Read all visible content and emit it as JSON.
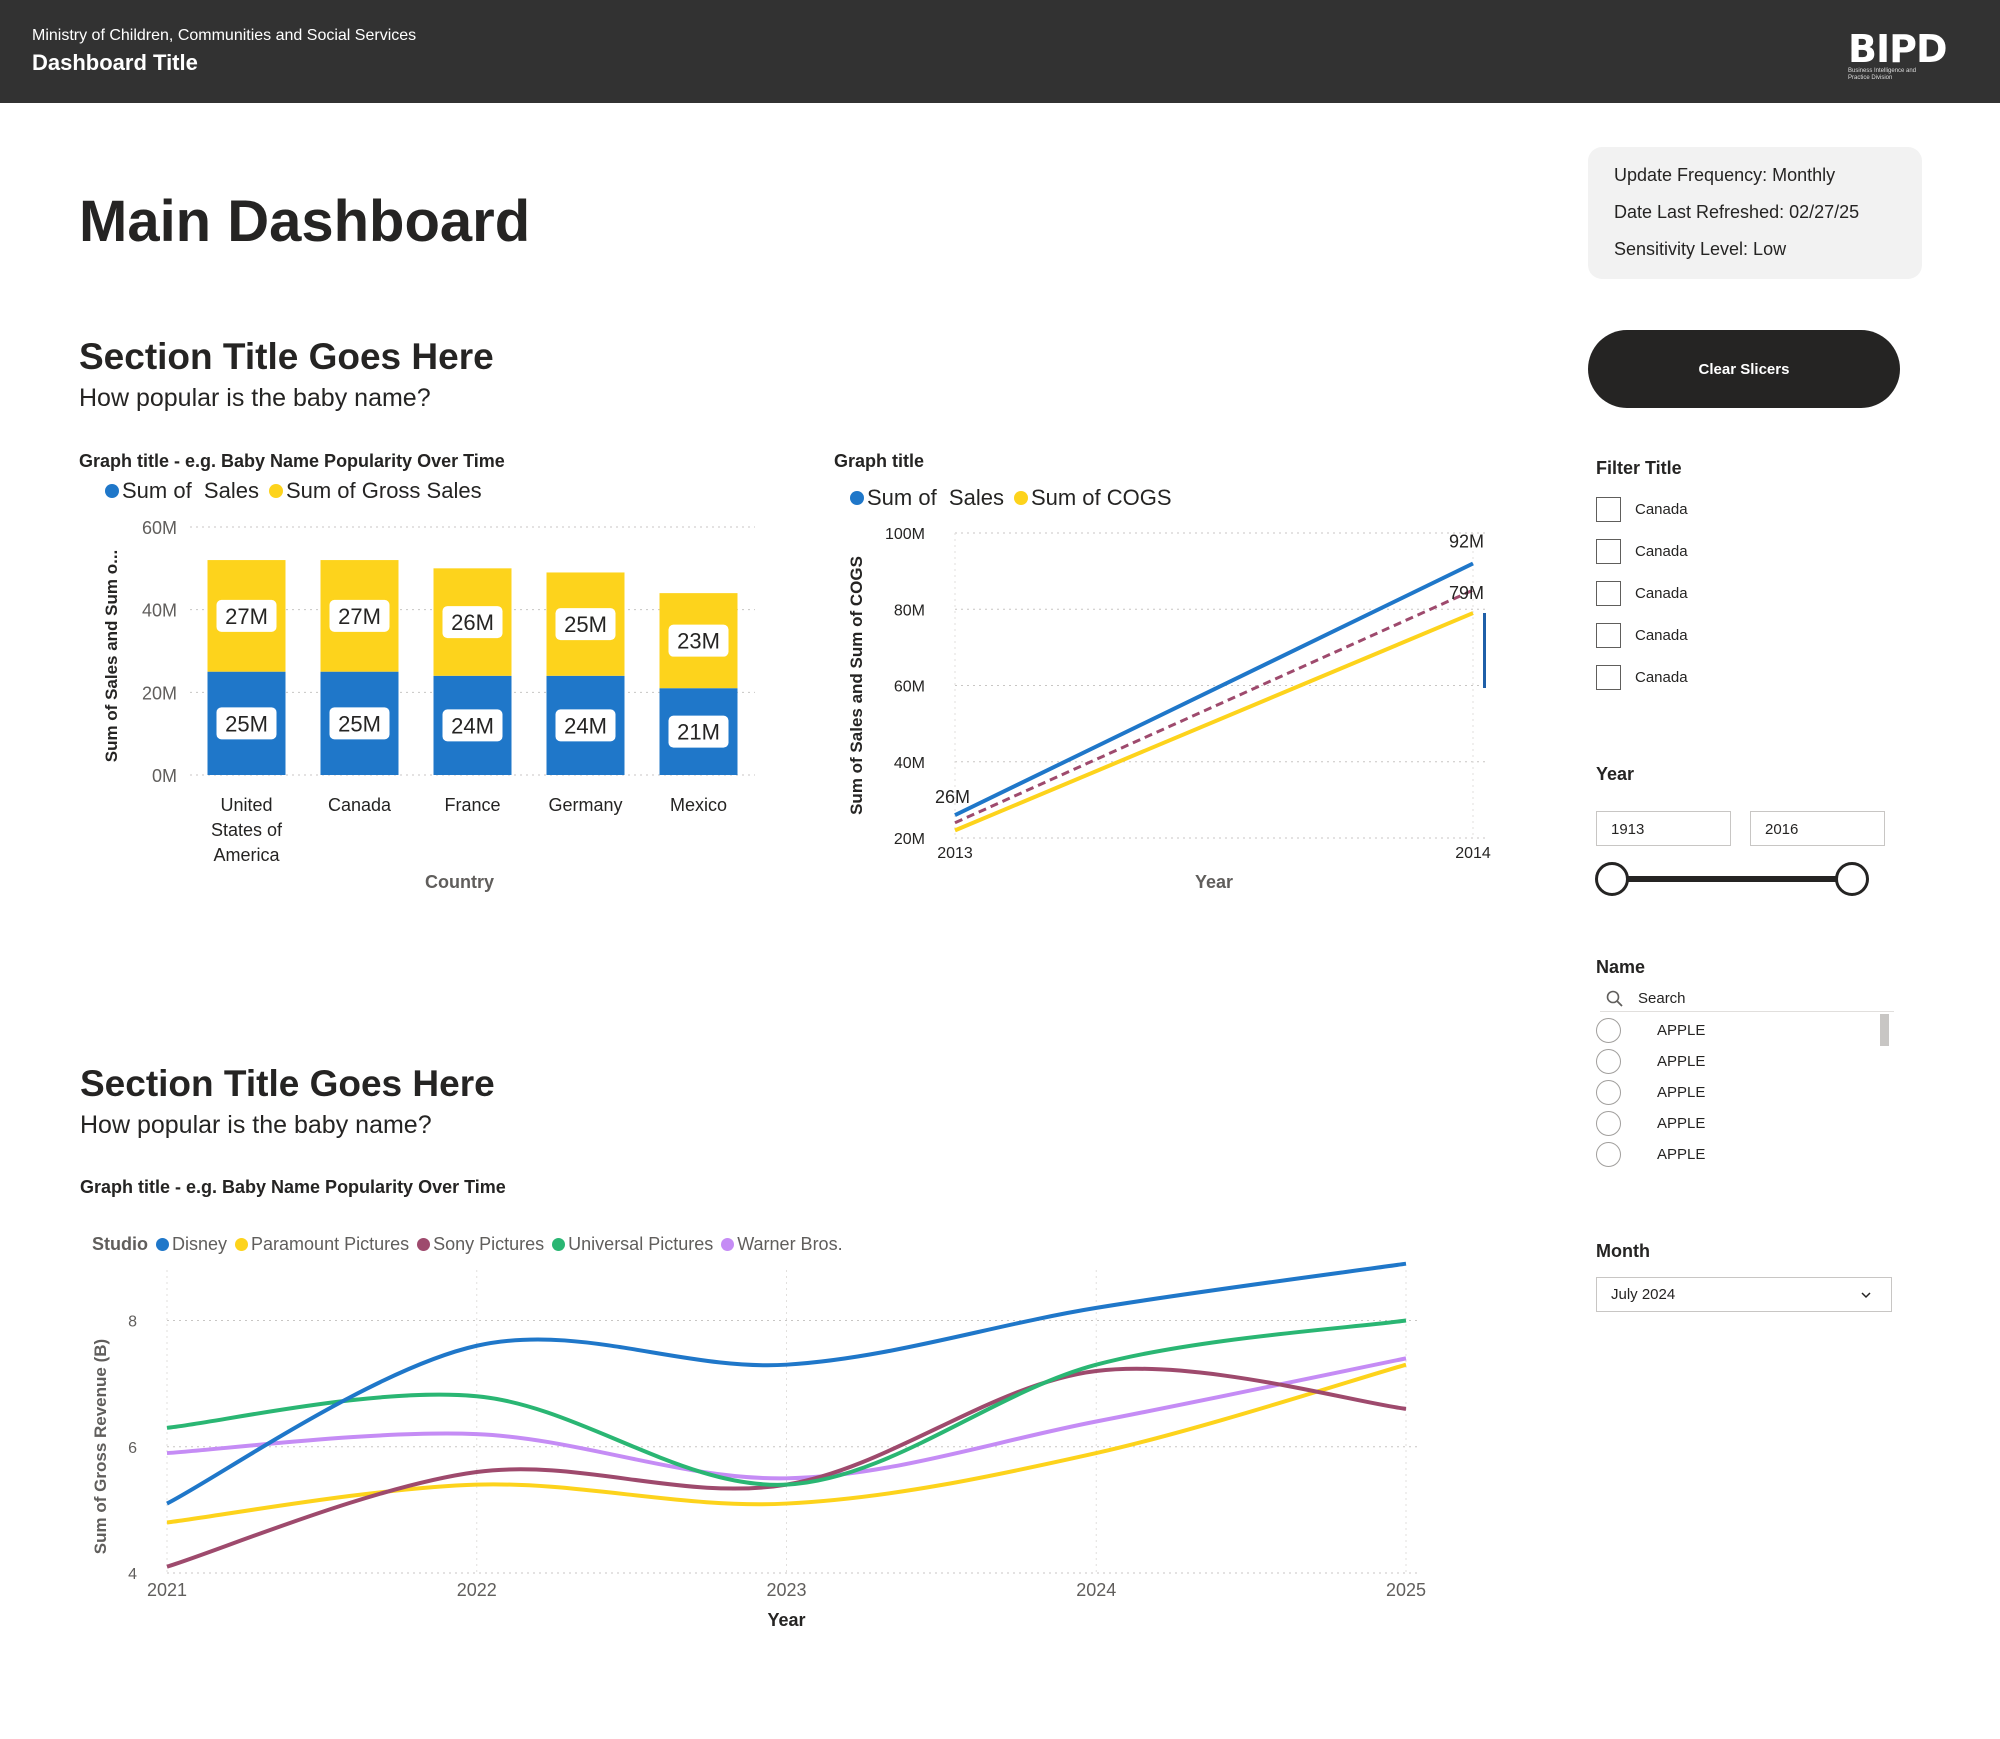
{
  "header": {
    "ministry": "Ministry of Children, Communities and Social Services",
    "title": "Dashboard Title",
    "logo_text": "BIPD",
    "logo_subtext": "Business Intelligence and Practice Division"
  },
  "main_title": "Main Dashboard",
  "info": {
    "update_frequency": "Update Frequency: Monthly",
    "date_refreshed": "Date Last Refreshed: 02/27/25",
    "sensitivity": "Sensitivity Level: Low"
  },
  "clear_slicers": "Clear Slicers",
  "filters": {
    "filter_title": "Filter Title",
    "checkbox_items": [
      "Canada",
      "Canada",
      "Canada",
      "Canada",
      "Canada"
    ],
    "year_title": "Year",
    "year_from": "1913",
    "year_to": "2016",
    "name_title": "Name",
    "name_search_placeholder": "Search",
    "name_items": [
      "APPLE",
      "APPLE",
      "APPLE",
      "APPLE",
      "APPLE"
    ],
    "month_title": "Month",
    "month_selected": "July 2024"
  },
  "section1": {
    "title": "Section Title Goes Here",
    "subtitle": "How popular is the baby name?"
  },
  "section2": {
    "title": "Section Title Goes Here",
    "subtitle": "How popular is the baby name?"
  },
  "colors": {
    "blue": "#1f77c9",
    "yellow": "#fdd31c",
    "maroon": "#9e4a6d",
    "green": "#2ab673",
    "purple": "#c58cf5",
    "header_bg": "#323232"
  },
  "chart_data": [
    {
      "type": "bar",
      "stacked": true,
      "title": "Graph title - e.g. Baby Name Popularity Over Time",
      "categories": [
        "United States of America",
        "Canada",
        "France",
        "Germany",
        "Mexico"
      ],
      "category_lines": [
        [
          "United",
          "States of",
          "America"
        ],
        [
          "Canada"
        ],
        [
          "France"
        ],
        [
          "Germany"
        ],
        [
          "Mexico"
        ]
      ],
      "series": [
        {
          "name": "Sum of  Sales",
          "color": "#1f77c9",
          "values": [
            25,
            25,
            24,
            24,
            21
          ],
          "labels": [
            "25M",
            "25M",
            "24M",
            "24M",
            "21M"
          ]
        },
        {
          "name": "Sum of Gross Sales",
          "color": "#fdd31c",
          "values": [
            27,
            27,
            26,
            25,
            23
          ],
          "labels": [
            "27M",
            "27M",
            "26M",
            "25M",
            "23M"
          ]
        }
      ],
      "xlabel": "Country",
      "ylabel": "Sum of Sales and Sum o...",
      "ylim": [
        0,
        60
      ],
      "yticks": [
        "0M",
        "20M",
        "40M",
        "60M"
      ],
      "grid": true,
      "legend": "top-left"
    },
    {
      "type": "line",
      "title": "Graph title",
      "x": [
        "2013",
        "2014"
      ],
      "series": [
        {
          "name": "Sum of  Sales",
          "color": "#1f77c9",
          "values": [
            26,
            92
          ]
        },
        {
          "name": "Sum of COGS",
          "color": "#fdd31c",
          "values": [
            22,
            79
          ]
        }
      ],
      "trend": {
        "dashed": true,
        "color": "#9e4a6d",
        "values": [
          24,
          85
        ]
      },
      "annotations": [
        "26M",
        "92M",
        "79M"
      ],
      "xlabel": "Year",
      "ylabel": "Sum of Sales and Sum of COGS",
      "ylim": [
        20,
        100
      ],
      "yticks": [
        "20M",
        "40M",
        "60M",
        "80M",
        "100M"
      ],
      "grid": true,
      "legend": "top-left"
    },
    {
      "type": "line",
      "title": "Graph title - e.g. Baby Name Popularity Over Time",
      "legend_title": "Studio",
      "x": [
        "2021",
        "2022",
        "2023",
        "2024",
        "2025"
      ],
      "series": [
        {
          "name": "Disney",
          "color": "#1f77c9",
          "values": [
            5.1,
            7.6,
            7.3,
            8.2,
            8.9
          ]
        },
        {
          "name": "Paramount Pictures",
          "color": "#fdd31c",
          "values": [
            4.8,
            5.4,
            5.1,
            5.9,
            7.3
          ]
        },
        {
          "name": "Sony Pictures",
          "color": "#9e4a6d",
          "values": [
            4.1,
            5.6,
            5.4,
            7.2,
            6.6
          ]
        },
        {
          "name": "Universal Pictures",
          "color": "#2ab673",
          "values": [
            6.3,
            6.8,
            5.4,
            7.3,
            8.0
          ]
        },
        {
          "name": "Warner Bros.",
          "color": "#c58cf5",
          "values": [
            5.9,
            6.2,
            5.5,
            6.4,
            7.4
          ]
        }
      ],
      "xlabel": "Year",
      "ylabel": "Sum of Gross Revenue (B)",
      "ylim": [
        4,
        8.8
      ],
      "yticks": [
        "4",
        "6",
        "8"
      ],
      "grid": true,
      "legend": "top-left"
    }
  ]
}
